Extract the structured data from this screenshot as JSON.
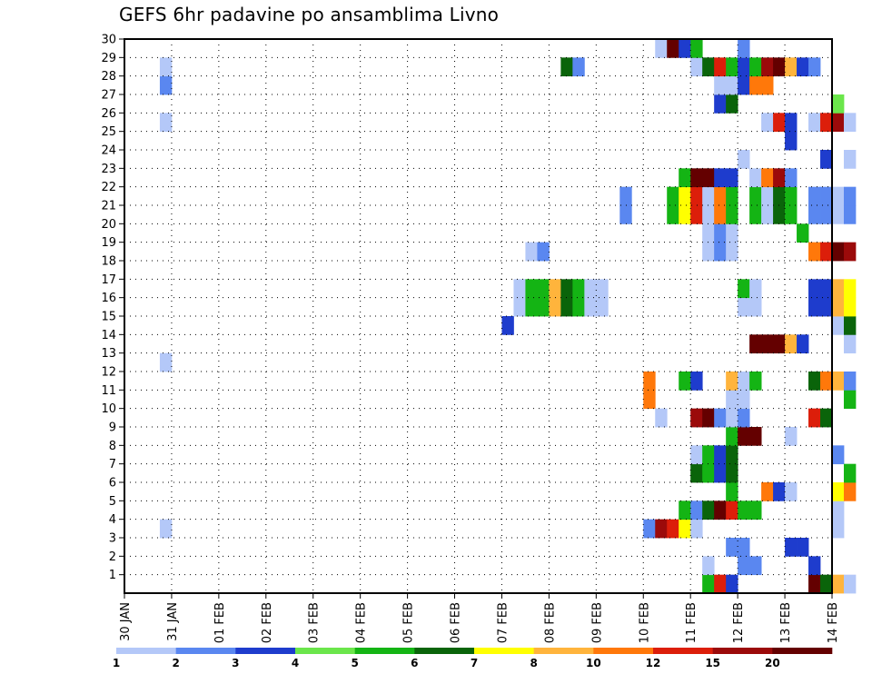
{
  "chart_data": {
    "type": "heatmap",
    "title": "GEFS 6hr padavine po ansamblima Livno",
    "x_tick_labels": [
      "30 JAN",
      "31 JAN",
      "01 FEB",
      "02 FEB",
      "03 FEB",
      "04 FEB",
      "05 FEB",
      "06 FEB",
      "07 FEB",
      "08 FEB",
      "09 FEB",
      "10 FEB",
      "11 FEB",
      "12 FEB",
      "13 FEB",
      "14 FEB"
    ],
    "y_tick_labels": [
      "1",
      "2",
      "3",
      "4",
      "5",
      "6",
      "7",
      "8",
      "9",
      "10",
      "11",
      "12",
      "13",
      "14",
      "15",
      "16",
      "17",
      "18",
      "19",
      "20",
      "21",
      "22",
      "23",
      "24",
      "25",
      "26",
      "27",
      "28",
      "29",
      "30"
    ],
    "x_unit": "6-hour steps from 30 JAN 00Z (4 steps per day)",
    "y_label_meaning": "ensemble member",
    "xlim_steps": [
      0,
      60
    ],
    "ylim_members": [
      0,
      30
    ],
    "grid": true,
    "colorbar": {
      "labels": [
        "1",
        "2",
        "3",
        "4",
        "5",
        "6",
        "7",
        "8",
        "10",
        "12",
        "15",
        "20"
      ],
      "colors": [
        "#b4c8f8",
        "#5a87f0",
        "#1e3ccd",
        "#6be64b",
        "#14b414",
        "#0a640a",
        "#ffff00",
        "#ffb43c",
        "#ff780a",
        "#dc1e0a",
        "#9b0a0a",
        "#640000"
      ]
    },
    "cells": [
      [
        3,
        3,
        1
      ],
      [
        3,
        12,
        1
      ],
      [
        3,
        25,
        1
      ],
      [
        3,
        27,
        2
      ],
      [
        3,
        28,
        1
      ],
      [
        32,
        14,
        3
      ],
      [
        33,
        15,
        1
      ],
      [
        33,
        16,
        1
      ],
      [
        34,
        15,
        5
      ],
      [
        34,
        16,
        5
      ],
      [
        34,
        18,
        1
      ],
      [
        35,
        15,
        5
      ],
      [
        35,
        16,
        5
      ],
      [
        35,
        18,
        2
      ],
      [
        36,
        15,
        8
      ],
      [
        36,
        16,
        8
      ],
      [
        37,
        15,
        6
      ],
      [
        37,
        16,
        6
      ],
      [
        37,
        28,
        6
      ],
      [
        38,
        15,
        5
      ],
      [
        38,
        16,
        5
      ],
      [
        38,
        28,
        2
      ],
      [
        39,
        15,
        1
      ],
      [
        39,
        16,
        1
      ],
      [
        40,
        15,
        1
      ],
      [
        40,
        16,
        1
      ],
      [
        42,
        20,
        2
      ],
      [
        42,
        21,
        2
      ],
      [
        44,
        3,
        2
      ],
      [
        44,
        10,
        9
      ],
      [
        44,
        11,
        9
      ],
      [
        45,
        3,
        11
      ],
      [
        45,
        9,
        1
      ],
      [
        45,
        29,
        1
      ],
      [
        46,
        3,
        10
      ],
      [
        46,
        20,
        5
      ],
      [
        46,
        21,
        5
      ],
      [
        46,
        29,
        12
      ],
      [
        47,
        3,
        7
      ],
      [
        47,
        4,
        5
      ],
      [
        47,
        11,
        5
      ],
      [
        47,
        20,
        7
      ],
      [
        47,
        21,
        7
      ],
      [
        47,
        22,
        5
      ],
      [
        47,
        29,
        3
      ],
      [
        48,
        3,
        1
      ],
      [
        48,
        4,
        2
      ],
      [
        48,
        6,
        6
      ],
      [
        48,
        7,
        1
      ],
      [
        48,
        9,
        11
      ],
      [
        48,
        11,
        3
      ],
      [
        48,
        20,
        10
      ],
      [
        48,
        21,
        10
      ],
      [
        48,
        22,
        12
      ],
      [
        48,
        28,
        1
      ],
      [
        48,
        29,
        5
      ],
      [
        49,
        0,
        5
      ],
      [
        49,
        1,
        1
      ],
      [
        49,
        4,
        6
      ],
      [
        49,
        6,
        5
      ],
      [
        49,
        7,
        5
      ],
      [
        49,
        9,
        12
      ],
      [
        49,
        18,
        1
      ],
      [
        49,
        19,
        1
      ],
      [
        49,
        20,
        1
      ],
      [
        49,
        21,
        1
      ],
      [
        49,
        22,
        12
      ],
      [
        49,
        28,
        6
      ],
      [
        50,
        0,
        10
      ],
      [
        50,
        4,
        12
      ],
      [
        50,
        6,
        3
      ],
      [
        50,
        7,
        3
      ],
      [
        50,
        9,
        2
      ],
      [
        50,
        18,
        2
      ],
      [
        50,
        19,
        2
      ],
      [
        50,
        20,
        9
      ],
      [
        50,
        21,
        9
      ],
      [
        50,
        22,
        3
      ],
      [
        50,
        26,
        3
      ],
      [
        50,
        27,
        1
      ],
      [
        50,
        28,
        10
      ],
      [
        51,
        0,
        3
      ],
      [
        51,
        2,
        2
      ],
      [
        51,
        4,
        10
      ],
      [
        51,
        5,
        5
      ],
      [
        51,
        6,
        6
      ],
      [
        51,
        7,
        6
      ],
      [
        51,
        8,
        5
      ],
      [
        51,
        9,
        1
      ],
      [
        51,
        10,
        1
      ],
      [
        51,
        11,
        8
      ],
      [
        51,
        18,
        1
      ],
      [
        51,
        19,
        1
      ],
      [
        51,
        20,
        5
      ],
      [
        51,
        21,
        5
      ],
      [
        51,
        22,
        3
      ],
      [
        51,
        26,
        6
      ],
      [
        51,
        27,
        1
      ],
      [
        51,
        28,
        5
      ],
      [
        52,
        1,
        2
      ],
      [
        52,
        2,
        2
      ],
      [
        52,
        4,
        5
      ],
      [
        52,
        8,
        12
      ],
      [
        52,
        9,
        2
      ],
      [
        52,
        10,
        1
      ],
      [
        52,
        11,
        1
      ],
      [
        52,
        15,
        1
      ],
      [
        52,
        16,
        5
      ],
      [
        52,
        23,
        1
      ],
      [
        52,
        27,
        3
      ],
      [
        52,
        28,
        3
      ],
      [
        52,
        29,
        2
      ],
      [
        53,
        1,
        2
      ],
      [
        53,
        4,
        5
      ],
      [
        53,
        8,
        12
      ],
      [
        53,
        11,
        5
      ],
      [
        53,
        13,
        12
      ],
      [
        53,
        15,
        1
      ],
      [
        53,
        16,
        1
      ],
      [
        53,
        20,
        5
      ],
      [
        53,
        21,
        5
      ],
      [
        53,
        22,
        1
      ],
      [
        53,
        27,
        9
      ],
      [
        53,
        28,
        5
      ],
      [
        54,
        5,
        9
      ],
      [
        54,
        13,
        12
      ],
      [
        54,
        20,
        1
      ],
      [
        54,
        21,
        1
      ],
      [
        54,
        22,
        9
      ],
      [
        54,
        25,
        1
      ],
      [
        54,
        27,
        9
      ],
      [
        54,
        28,
        11
      ],
      [
        55,
        5,
        3
      ],
      [
        55,
        13,
        12
      ],
      [
        55,
        20,
        6
      ],
      [
        55,
        21,
        6
      ],
      [
        55,
        22,
        11
      ],
      [
        55,
        25,
        10
      ],
      [
        55,
        28,
        12
      ],
      [
        56,
        2,
        3
      ],
      [
        56,
        5,
        1
      ],
      [
        56,
        8,
        1
      ],
      [
        56,
        13,
        8
      ],
      [
        56,
        20,
        5
      ],
      [
        56,
        21,
        5
      ],
      [
        56,
        22,
        2
      ],
      [
        56,
        24,
        3
      ],
      [
        56,
        25,
        3
      ],
      [
        56,
        28,
        8
      ],
      [
        57,
        2,
        3
      ],
      [
        57,
        13,
        3
      ],
      [
        57,
        19,
        5
      ],
      [
        57,
        28,
        3
      ],
      [
        58,
        0,
        12
      ],
      [
        58,
        1,
        3
      ],
      [
        58,
        9,
        10
      ],
      [
        58,
        11,
        6
      ],
      [
        58,
        15,
        3
      ],
      [
        58,
        16,
        3
      ],
      [
        58,
        18,
        9
      ],
      [
        58,
        20,
        2
      ],
      [
        58,
        21,
        2
      ],
      [
        58,
        25,
        1
      ],
      [
        58,
        28,
        2
      ],
      [
        59,
        0,
        6
      ],
      [
        59,
        9,
        6
      ],
      [
        59,
        11,
        9
      ],
      [
        59,
        15,
        3
      ],
      [
        59,
        16,
        3
      ],
      [
        59,
        18,
        10
      ],
      [
        59,
        20,
        2
      ],
      [
        59,
        21,
        2
      ],
      [
        59,
        23,
        3
      ],
      [
        59,
        25,
        10
      ],
      [
        60,
        0,
        8
      ],
      [
        60,
        3,
        1
      ],
      [
        60,
        4,
        1
      ],
      [
        60,
        5,
        7
      ],
      [
        60,
        7,
        2
      ],
      [
        60,
        11,
        8
      ],
      [
        60,
        14,
        1
      ],
      [
        60,
        15,
        8
      ],
      [
        60,
        16,
        8
      ],
      [
        60,
        18,
        12
      ],
      [
        60,
        20,
        1
      ],
      [
        60,
        21,
        1
      ],
      [
        60,
        25,
        11
      ],
      [
        60,
        26,
        4
      ],
      [
        61,
        0,
        1
      ],
      [
        61,
        5,
        9
      ],
      [
        61,
        6,
        5
      ],
      [
        61,
        10,
        5
      ],
      [
        61,
        11,
        2
      ],
      [
        61,
        13,
        1
      ],
      [
        61,
        14,
        6
      ],
      [
        61,
        15,
        7
      ],
      [
        61,
        16,
        7
      ],
      [
        61,
        18,
        11
      ],
      [
        61,
        20,
        2
      ],
      [
        61,
        21,
        2
      ],
      [
        61,
        23,
        1
      ],
      [
        61,
        25,
        1
      ]
    ]
  }
}
